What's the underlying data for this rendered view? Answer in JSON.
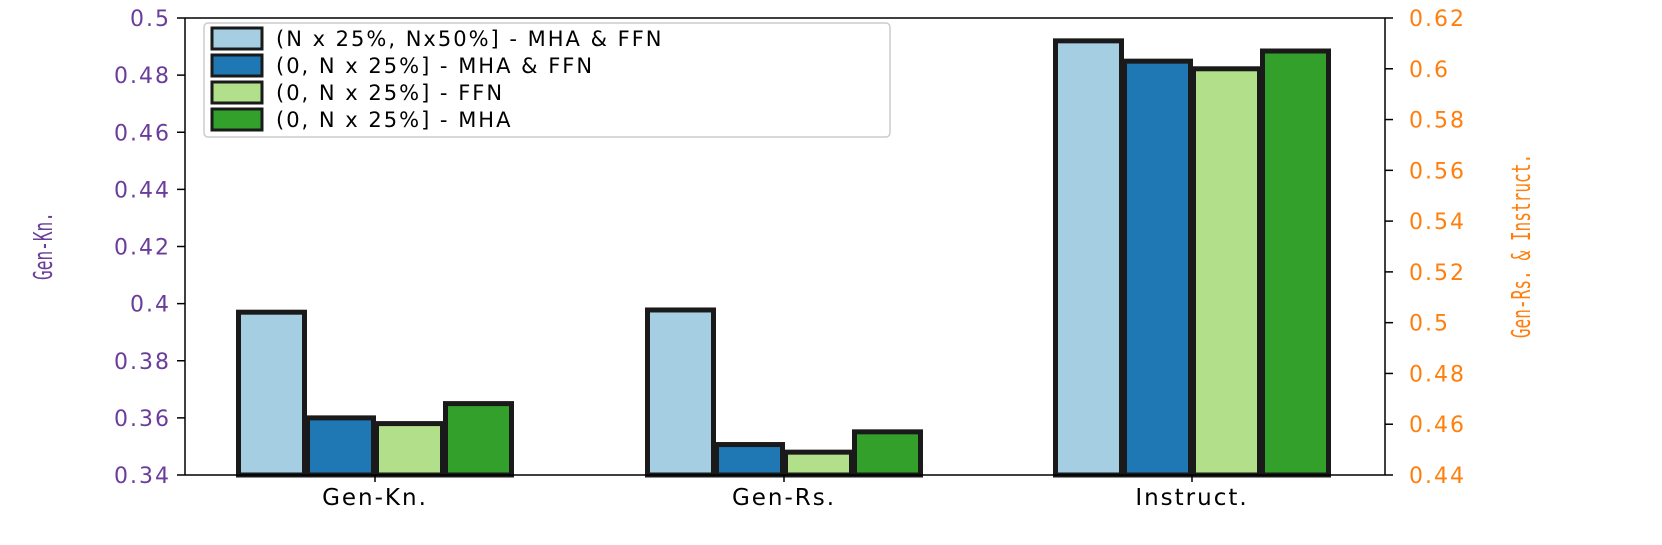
{
  "chart_data": {
    "type": "bar",
    "categories": [
      "Gen-Kn.",
      "Gen-Rs.",
      "Instruct."
    ],
    "ylabel": "Gen-Kn.",
    "ylabel_right": "Gen-Rs. & Instruct.",
    "ylim": [
      0.34,
      0.5
    ],
    "ylim_right": [
      0.44,
      0.62
    ],
    "yticks": [
      "0.34",
      "0.36",
      "0.38",
      "0.4",
      "0.42",
      "0.44",
      "0.46",
      "0.48",
      "0.5"
    ],
    "yticks_right": [
      "0.44",
      "0.46",
      "0.48",
      "0.5",
      "0.52",
      "0.54",
      "0.56",
      "0.58",
      "0.6",
      "0.62"
    ],
    "category_axis": [
      "left",
      "right",
      "right"
    ],
    "legend_position": "top-left",
    "grid": false,
    "series": [
      {
        "name": "(N x 25%, Nx50%] - MHA & FFN",
        "color": "#a6cee3",
        "values": [
          0.397,
          0.505,
          0.611
        ]
      },
      {
        "name": "(0, N x 25%] - MHA & FFN",
        "color": "#1f78b4",
        "values": [
          0.36,
          0.452,
          0.603
        ]
      },
      {
        "name": "(0, N x 25%] - FFN",
        "color": "#b2df8a",
        "values": [
          0.358,
          0.449,
          0.6
        ]
      },
      {
        "name": "(0, N x 25%] - MHA",
        "color": "#33a02c",
        "values": [
          0.365,
          0.457,
          0.607
        ]
      }
    ],
    "left_axis_color": "#6a3d9a",
    "right_axis_color": "#ff7f0e"
  }
}
